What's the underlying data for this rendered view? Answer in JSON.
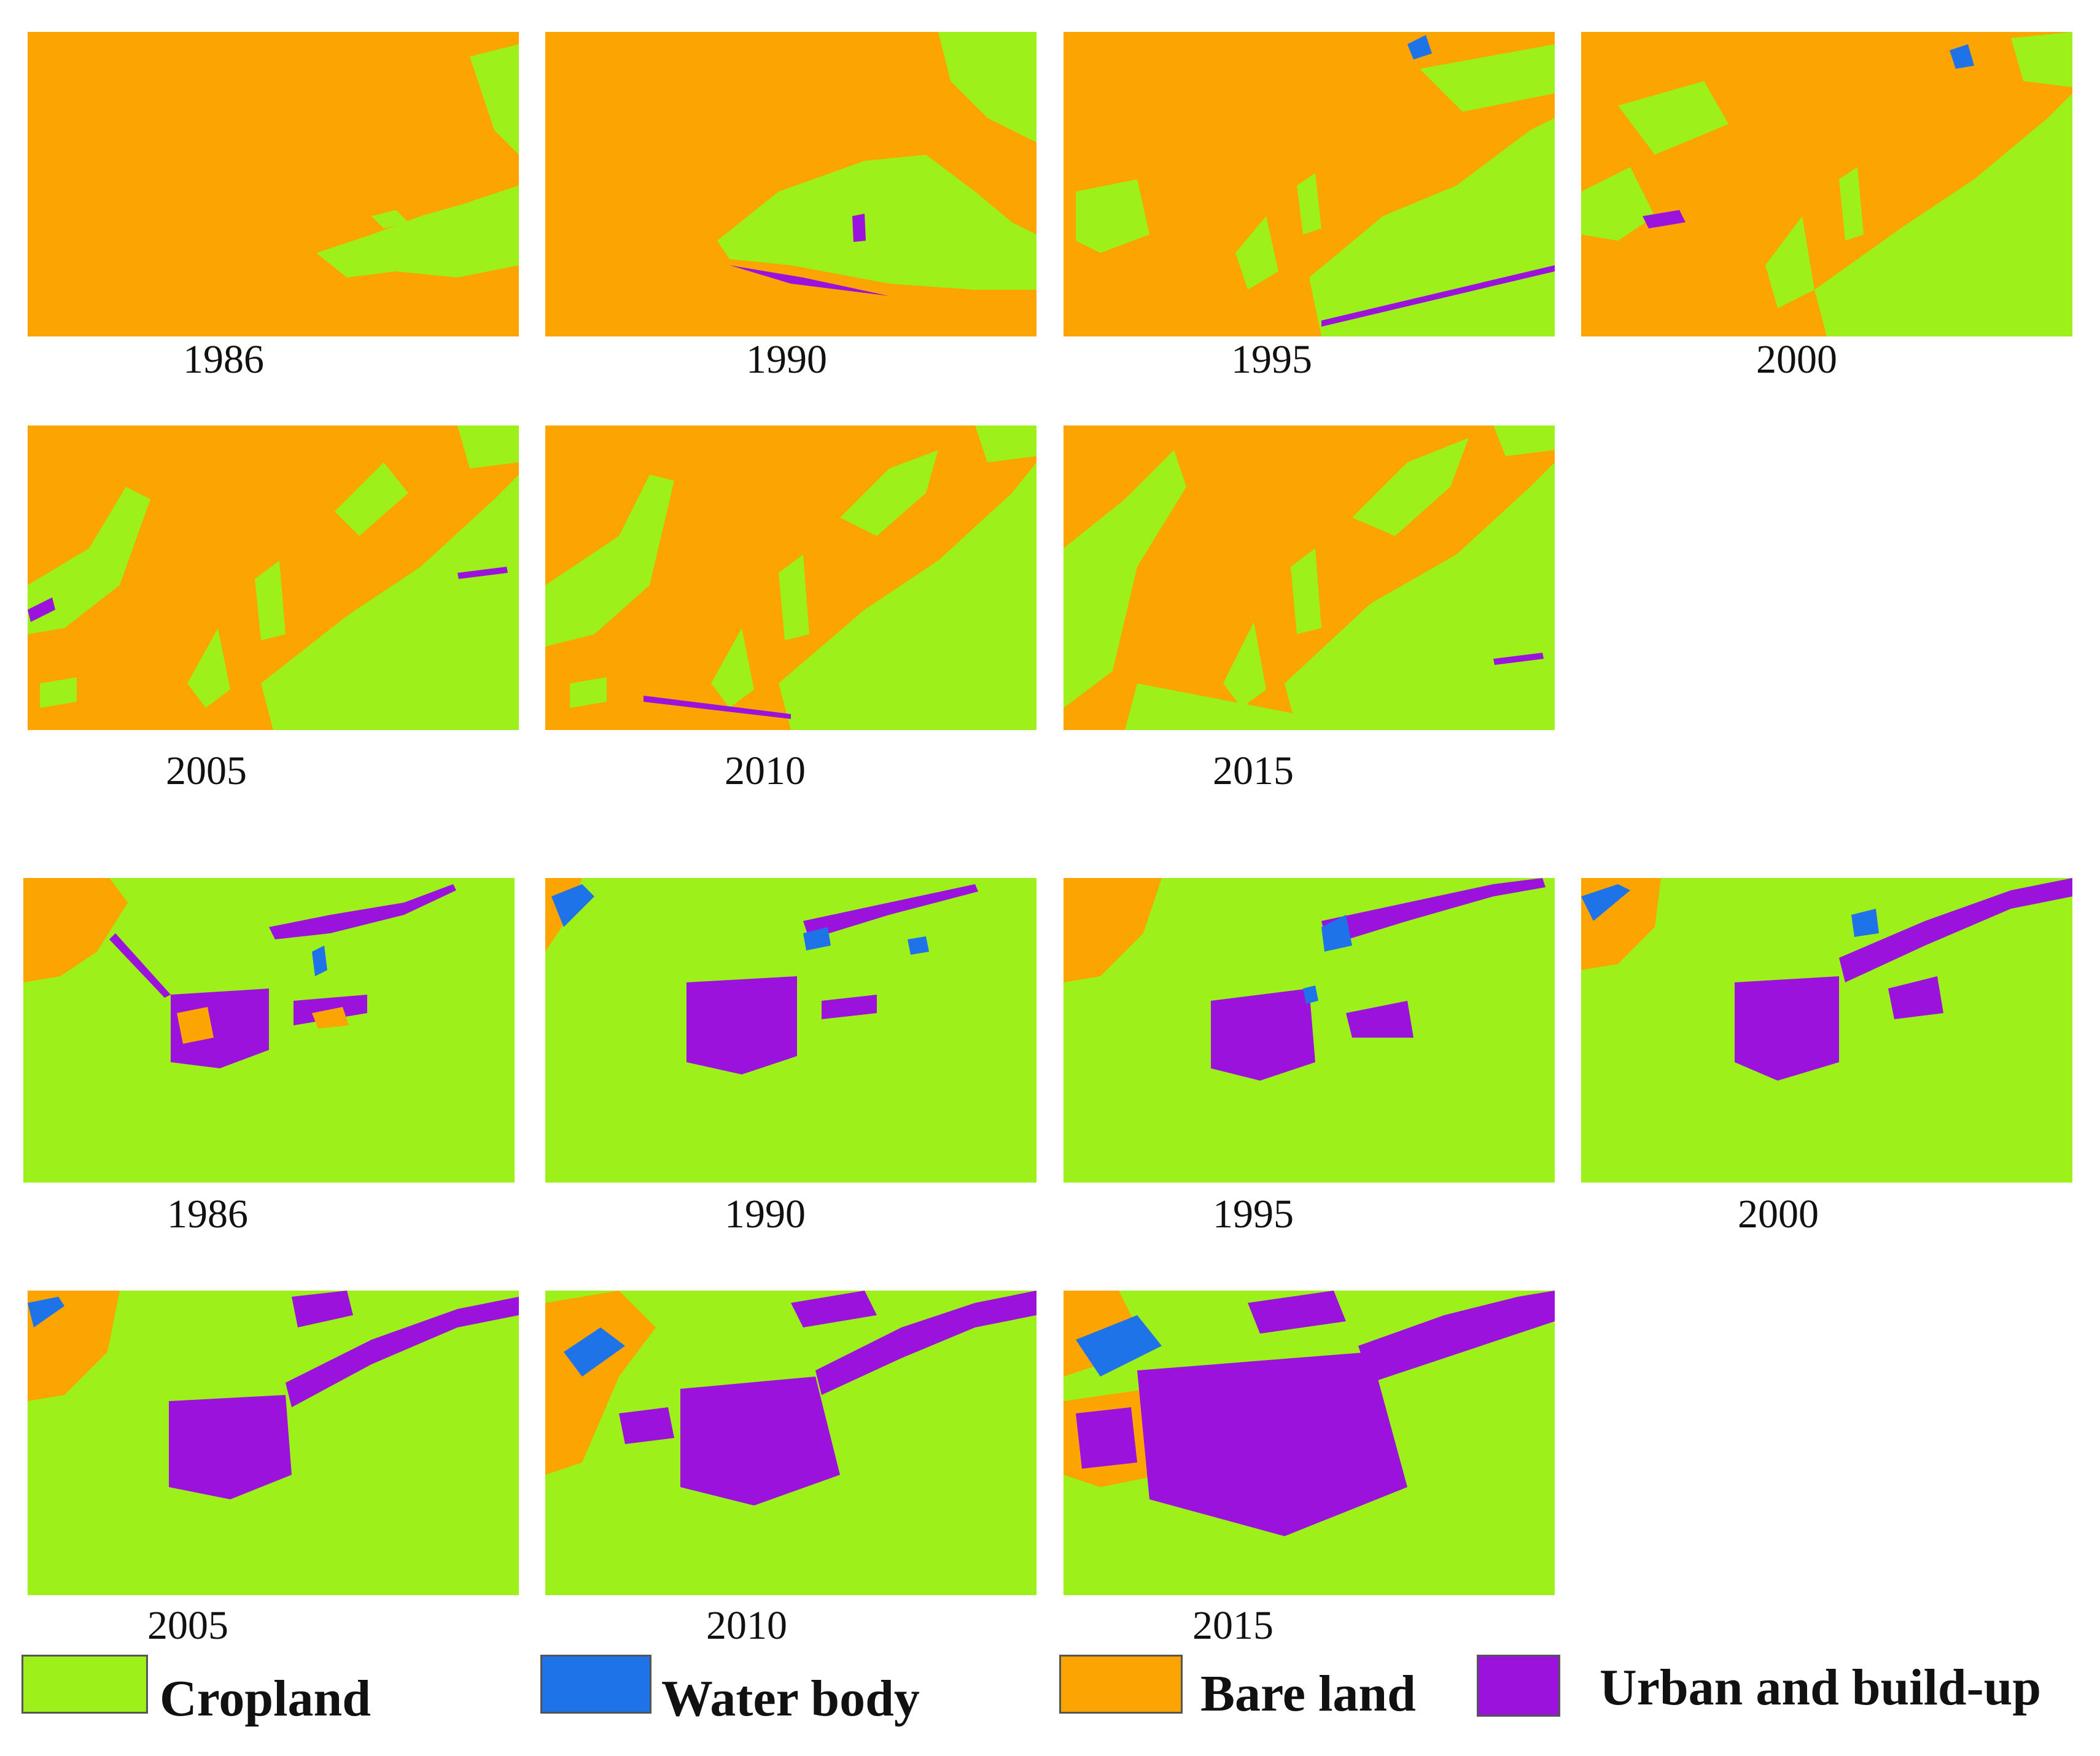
{
  "colors": {
    "cropland": "#9ef01a",
    "water": "#1e73e8",
    "bare": "#fba402",
    "urban": "#9a12dc"
  },
  "series_a": {
    "years": [
      "1986",
      "1990",
      "1995",
      "2000",
      "2005",
      "2010",
      "2015"
    ]
  },
  "series_b": {
    "years": [
      "1986",
      "1990",
      "1995",
      "2000",
      "2005",
      "2010",
      "2015"
    ]
  },
  "legend": {
    "items": [
      {
        "label": "Cropland",
        "color": "#9ef01a"
      },
      {
        "label": "Water body",
        "color": "#1e73e8"
      },
      {
        "label": "Bare land",
        "color": "#fba402"
      },
      {
        "label": "Urban and build-up",
        "color": "#9a12dc"
      }
    ]
  }
}
